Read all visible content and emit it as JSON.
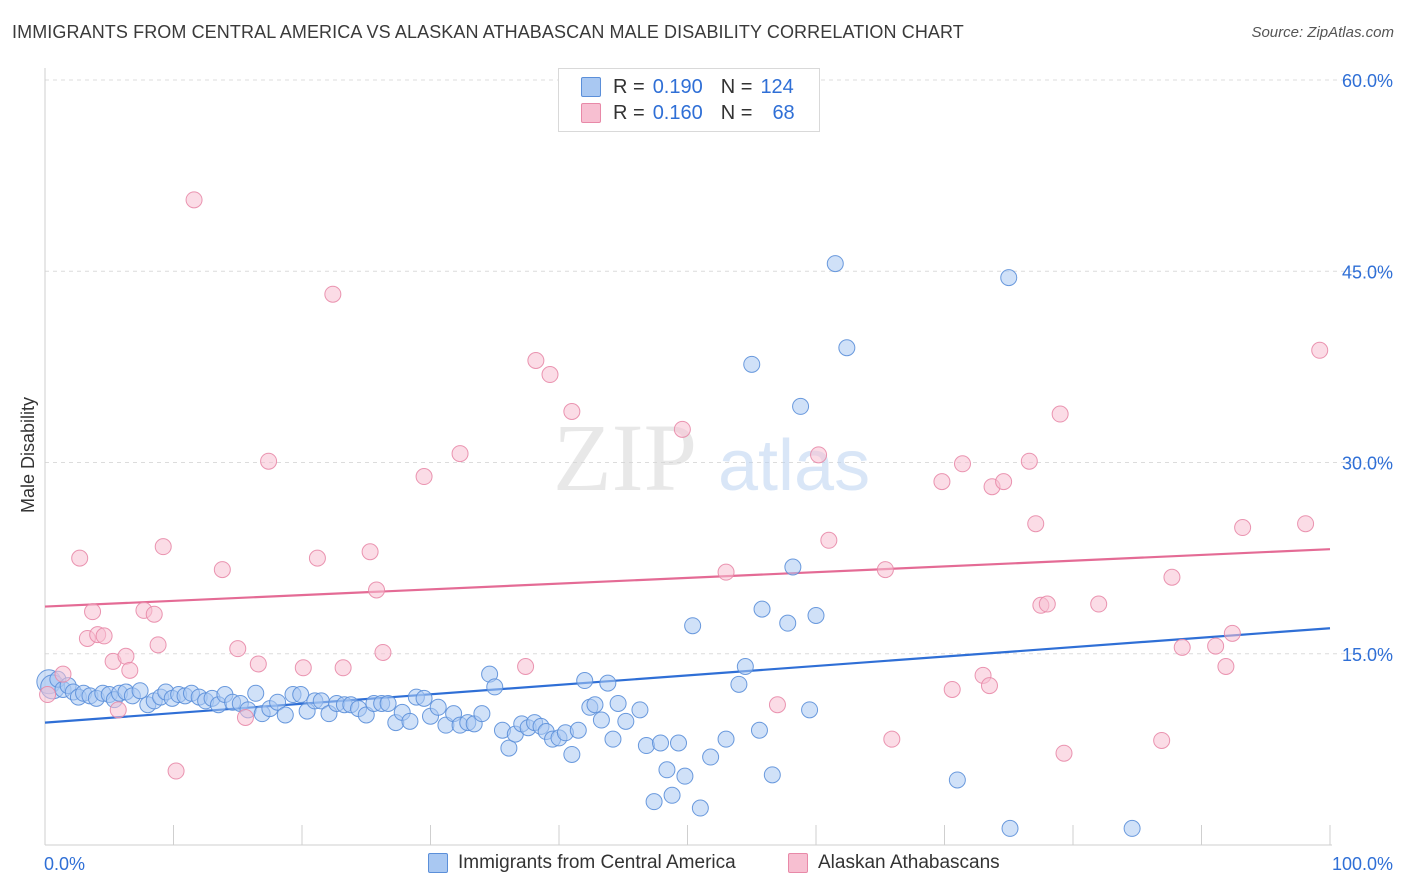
{
  "title": "IMMIGRANTS FROM CENTRAL AMERICA VS ALASKAN ATHABASCAN MALE DISABILITY CORRELATION CHART",
  "source": "Source: ZipAtlas.com",
  "watermark": {
    "zip": "ZIP",
    "atlas": "atlas"
  },
  "colors": {
    "blue_fill": "#a9c8f2",
    "blue_stroke": "#5b8fd9",
    "blue_line": "#2f6fd6",
    "pink_fill": "#f7bfd1",
    "pink_stroke": "#e889a8",
    "pink_line": "#e46b95",
    "grid": "#dcdcdc",
    "axis_text_blue": "#2f6fd6"
  },
  "legend": {
    "rows": [
      {
        "r_label": "R =",
        "r_value": "0.190",
        "n_label": "N =",
        "n_value": "124",
        "series": "blue"
      },
      {
        "r_label": "R =",
        "r_value": "0.160",
        "n_label": "N =",
        "n_value": "68",
        "series": "pink"
      }
    ]
  },
  "bottom_legend": [
    {
      "label": "Immigrants from Central America",
      "series": "blue"
    },
    {
      "label": "Alaskan Athabascans",
      "series": "pink"
    }
  ],
  "chart_data": {
    "type": "scatter",
    "title": "IMMIGRANTS FROM CENTRAL AMERICA VS ALASKAN ATHABASCAN MALE DISABILITY CORRELATION CHART",
    "xlabel": "",
    "ylabel": "Male Disability",
    "xlim": [
      0,
      100
    ],
    "ylim": [
      0,
      60
    ],
    "x_tick_labels": [
      {
        "value": 0,
        "label": "0.0%"
      },
      {
        "value": 100,
        "label": "100.0%"
      }
    ],
    "y_tick_labels": [
      {
        "value": 15,
        "label": "15.0%"
      },
      {
        "value": 30,
        "label": "30.0%"
      },
      {
        "value": 45,
        "label": "45.0%"
      },
      {
        "value": 60,
        "label": "60.0%"
      }
    ],
    "grid": true,
    "series": [
      {
        "name": "Immigrants from Central America",
        "color": "blue",
        "trend": {
          "x": [
            0,
            100
          ],
          "y": [
            9.6,
            17.0
          ]
        },
        "points": [
          [
            0.3,
            12.8
          ],
          [
            0.6,
            12.4
          ],
          [
            1.0,
            13.0
          ],
          [
            1.4,
            12.2
          ],
          [
            1.8,
            12.5
          ],
          [
            2.2,
            12.0
          ],
          [
            2.6,
            11.6
          ],
          [
            3.0,
            11.9
          ],
          [
            3.5,
            11.7
          ],
          [
            4.0,
            11.5
          ],
          [
            4.5,
            11.9
          ],
          [
            5.0,
            11.8
          ],
          [
            5.4,
            11.4
          ],
          [
            5.8,
            11.9
          ],
          [
            6.3,
            12.0
          ],
          [
            6.8,
            11.7
          ],
          [
            7.4,
            12.1
          ],
          [
            8.0,
            11.0
          ],
          [
            8.5,
            11.3
          ],
          [
            9.0,
            11.6
          ],
          [
            9.4,
            12.0
          ],
          [
            9.9,
            11.5
          ],
          [
            10.4,
            11.8
          ],
          [
            10.9,
            11.7
          ],
          [
            11.4,
            11.9
          ],
          [
            12.0,
            11.6
          ],
          [
            12.5,
            11.3
          ],
          [
            13.0,
            11.5
          ],
          [
            13.5,
            11.0
          ],
          [
            14.0,
            11.8
          ],
          [
            14.6,
            11.2
          ],
          [
            15.2,
            11.1
          ],
          [
            15.8,
            10.6
          ],
          [
            16.4,
            11.9
          ],
          [
            16.9,
            10.3
          ],
          [
            17.5,
            10.7
          ],
          [
            18.1,
            11.2
          ],
          [
            18.7,
            10.2
          ],
          [
            19.3,
            11.8
          ],
          [
            19.9,
            11.8
          ],
          [
            20.4,
            10.5
          ],
          [
            21.0,
            11.3
          ],
          [
            21.5,
            11.3
          ],
          [
            22.1,
            10.3
          ],
          [
            22.7,
            11.1
          ],
          [
            23.3,
            11.0
          ],
          [
            23.8,
            11.0
          ],
          [
            24.4,
            10.7
          ],
          [
            25.0,
            10.2
          ],
          [
            25.6,
            11.1
          ],
          [
            26.2,
            11.1
          ],
          [
            26.7,
            11.1
          ],
          [
            27.3,
            9.6
          ],
          [
            27.8,
            10.4
          ],
          [
            28.4,
            9.7
          ],
          [
            28.9,
            11.6
          ],
          [
            29.5,
            11.5
          ],
          [
            30.0,
            10.1
          ],
          [
            30.6,
            10.8
          ],
          [
            31.2,
            9.4
          ],
          [
            31.8,
            10.3
          ],
          [
            32.3,
            9.4
          ],
          [
            32.9,
            9.6
          ],
          [
            33.4,
            9.5
          ],
          [
            34.0,
            10.3
          ],
          [
            34.6,
            13.4
          ],
          [
            35.0,
            12.4
          ],
          [
            35.6,
            9.0
          ],
          [
            36.1,
            7.6
          ],
          [
            36.6,
            8.7
          ],
          [
            37.1,
            9.5
          ],
          [
            37.6,
            9.2
          ],
          [
            38.1,
            9.6
          ],
          [
            38.6,
            9.3
          ],
          [
            39.0,
            8.9
          ],
          [
            39.5,
            8.3
          ],
          [
            40.0,
            8.4
          ],
          [
            40.5,
            8.8
          ],
          [
            41.0,
            7.1
          ],
          [
            41.5,
            9.0
          ],
          [
            42.0,
            12.9
          ],
          [
            42.4,
            10.8
          ],
          [
            42.8,
            11.0
          ],
          [
            43.3,
            9.8
          ],
          [
            43.8,
            12.7
          ],
          [
            44.2,
            8.3
          ],
          [
            44.6,
            11.1
          ],
          [
            45.2,
            9.7
          ],
          [
            46.3,
            10.6
          ],
          [
            46.8,
            7.8
          ],
          [
            47.4,
            3.4
          ],
          [
            47.9,
            8.0
          ],
          [
            48.4,
            5.9
          ],
          [
            48.8,
            3.9
          ],
          [
            49.3,
            8.0
          ],
          [
            49.8,
            5.4
          ],
          [
            50.4,
            17.2
          ],
          [
            51.0,
            2.9
          ],
          [
            51.8,
            6.9
          ],
          [
            53.0,
            8.3
          ],
          [
            54.0,
            12.6
          ],
          [
            54.5,
            14.0
          ],
          [
            55.0,
            37.7
          ],
          [
            55.6,
            9.0
          ],
          [
            55.8,
            18.5
          ],
          [
            56.6,
            5.5
          ],
          [
            57.8,
            17.4
          ],
          [
            58.2,
            21.8
          ],
          [
            58.8,
            34.4
          ],
          [
            59.5,
            10.6
          ],
          [
            60.0,
            18.0
          ],
          [
            61.5,
            45.6
          ],
          [
            62.4,
            39.0
          ],
          [
            71.0,
            5.1
          ],
          [
            75.0,
            44.5
          ],
          [
            75.1,
            1.3
          ],
          [
            84.6,
            1.3
          ]
        ]
      },
      {
        "name": "Alaskan Athabascans",
        "color": "pink",
        "trend": {
          "x": [
            0,
            100
          ],
          "y": [
            18.7,
            23.2
          ]
        },
        "points": [
          [
            0.2,
            11.8
          ],
          [
            1.4,
            13.4
          ],
          [
            2.7,
            22.5
          ],
          [
            3.3,
            16.2
          ],
          [
            3.7,
            18.3
          ],
          [
            4.1,
            16.5
          ],
          [
            4.6,
            16.4
          ],
          [
            5.3,
            14.4
          ],
          [
            5.7,
            10.6
          ],
          [
            6.3,
            14.8
          ],
          [
            6.6,
            13.7
          ],
          [
            7.7,
            18.4
          ],
          [
            8.5,
            18.1
          ],
          [
            8.8,
            15.7
          ],
          [
            9.2,
            23.4
          ],
          [
            10.2,
            5.8
          ],
          [
            11.6,
            50.6
          ],
          [
            13.8,
            21.6
          ],
          [
            15.0,
            15.4
          ],
          [
            15.6,
            10.0
          ],
          [
            16.6,
            14.2
          ],
          [
            17.4,
            30.1
          ],
          [
            20.1,
            13.9
          ],
          [
            21.2,
            22.5
          ],
          [
            22.4,
            43.2
          ],
          [
            23.2,
            13.9
          ],
          [
            25.3,
            23.0
          ],
          [
            25.8,
            20.0
          ],
          [
            26.3,
            15.1
          ],
          [
            29.5,
            28.9
          ],
          [
            32.3,
            30.7
          ],
          [
            37.4,
            14.0
          ],
          [
            38.2,
            38.0
          ],
          [
            39.3,
            36.9
          ],
          [
            41.0,
            34.0
          ],
          [
            49.6,
            32.6
          ],
          [
            53.0,
            21.4
          ],
          [
            57.0,
            11.0
          ],
          [
            60.2,
            30.6
          ],
          [
            61.0,
            23.9
          ],
          [
            65.4,
            21.6
          ],
          [
            65.9,
            8.3
          ],
          [
            69.8,
            28.5
          ],
          [
            70.6,
            12.2
          ],
          [
            71.4,
            29.9
          ],
          [
            73.0,
            13.3
          ],
          [
            73.5,
            12.5
          ],
          [
            73.7,
            28.1
          ],
          [
            74.6,
            28.5
          ],
          [
            76.6,
            30.1
          ],
          [
            77.1,
            25.2
          ],
          [
            77.5,
            18.8
          ],
          [
            78.0,
            18.9
          ],
          [
            79.0,
            33.8
          ],
          [
            79.3,
            7.2
          ],
          [
            82.0,
            18.9
          ],
          [
            86.9,
            8.2
          ],
          [
            87.7,
            21.0
          ],
          [
            88.5,
            15.5
          ],
          [
            91.1,
            15.6
          ],
          [
            91.9,
            14.0
          ],
          [
            92.4,
            16.6
          ],
          [
            93.2,
            24.9
          ],
          [
            98.1,
            25.2
          ],
          [
            99.2,
            38.8
          ]
        ]
      }
    ]
  }
}
